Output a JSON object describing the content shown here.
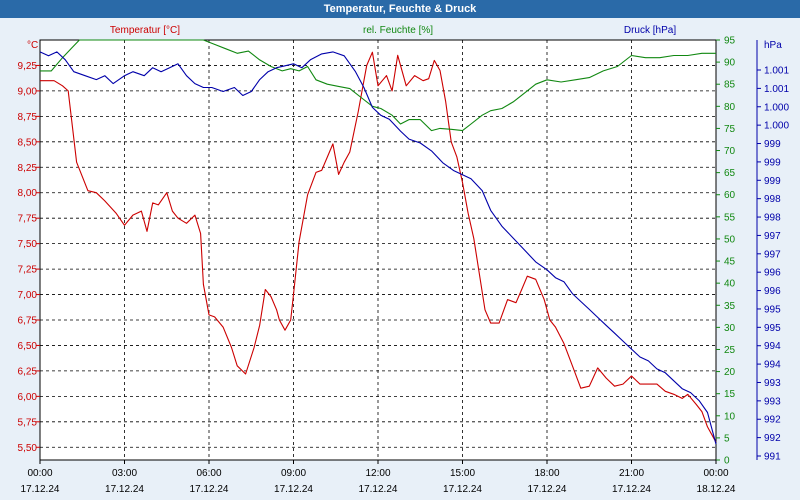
{
  "chart_data": {
    "type": "line",
    "title": "Temperatur, Feuchte & Druck",
    "x_labels": [
      {
        "time": "00:00",
        "date": "17.12.24"
      },
      {
        "time": "03:00",
        "date": "17.12.24"
      },
      {
        "time": "06:00",
        "date": "17.12.24"
      },
      {
        "time": "09:00",
        "date": "17.12.24"
      },
      {
        "time": "12:00",
        "date": "17.12.24"
      },
      {
        "time": "15:00",
        "date": "17.12.24"
      },
      {
        "time": "18:00",
        "date": "17.12.24"
      },
      {
        "time": "21:00",
        "date": "17.12.24"
      },
      {
        "time": "00:00",
        "date": "18.12.24"
      }
    ],
    "xlim_hours": [
      0,
      24
    ],
    "axes": {
      "temperature": {
        "label": "Temperatur [°C]",
        "unit": "°C",
        "ylim": [
          5.375,
          9.5
        ],
        "ticks": [
          "9,25",
          "9,00",
          "8,75",
          "8,50",
          "8,25",
          "8,00",
          "7,75",
          "7,50",
          "7,25",
          "7,00",
          "6,75",
          "6,50",
          "6,25",
          "6,00",
          "5,75",
          "5,50"
        ],
        "color": "#cc0000"
      },
      "humidity": {
        "label": "rel. Feuchte [%]",
        "unit": "%",
        "ylim": [
          0,
          95
        ],
        "ticks": [
          "95",
          "90",
          "85",
          "80",
          "75",
          "70",
          "65",
          "60",
          "55",
          "50",
          "45",
          "40",
          "35",
          "30",
          "25",
          "20",
          "15",
          "10",
          "5",
          "0"
        ],
        "color": "#118811"
      },
      "pressure": {
        "label": "Druck [hPa]",
        "unit": "hPa",
        "ylim": [
          991,
          1001.6
        ],
        "ticks": [
          "1.001",
          "1.001",
          "1.000",
          "1.000",
          "999",
          "999",
          "999",
          "998",
          "998",
          "997",
          "997",
          "996",
          "996",
          "995",
          "995",
          "994",
          "994",
          "993",
          "993",
          "992",
          "992",
          "991"
        ],
        "color": "#0000aa"
      }
    },
    "series": [
      {
        "name": "Temperatur",
        "axis": "temperature",
        "color": "#cc0000",
        "x": [
          0,
          0.5,
          0.8,
          1.0,
          1.3,
          1.7,
          2.0,
          2.3,
          2.7,
          3.0,
          3.3,
          3.6,
          3.8,
          4.0,
          4.2,
          4.5,
          4.7,
          4.9,
          5.2,
          5.5,
          5.7,
          5.8,
          6.0,
          6.2,
          6.5,
          6.8,
          7.0,
          7.3,
          7.6,
          7.8,
          8.0,
          8.2,
          8.4,
          8.5,
          8.7,
          8.9,
          9.0,
          9.2,
          9.5,
          9.8,
          10.0,
          10.2,
          10.4,
          10.6,
          10.8,
          11.0,
          11.3,
          11.6,
          11.8,
          12.0,
          12.3,
          12.5,
          12.7,
          13.0,
          13.3,
          13.6,
          13.8,
          14.0,
          14.2,
          14.4,
          14.6,
          14.8,
          15.0,
          15.2,
          15.4,
          15.6,
          15.8,
          16.0,
          16.3,
          16.6,
          16.9,
          17.1,
          17.3,
          17.6,
          17.9,
          18.1,
          18.3,
          18.6,
          18.9,
          19.2,
          19.5,
          19.8,
          20.1,
          20.4,
          20.7,
          21.0,
          21.3,
          21.6,
          21.9,
          22.2,
          22.5,
          22.8,
          23.0,
          23.3,
          23.5,
          23.7,
          24.0
        ],
        "values": [
          9.1,
          9.1,
          9.05,
          9.0,
          8.3,
          8.02,
          8.0,
          7.92,
          7.8,
          7.68,
          7.78,
          7.82,
          7.62,
          7.9,
          7.88,
          8.0,
          7.82,
          7.75,
          7.7,
          7.78,
          7.6,
          7.1,
          6.8,
          6.78,
          6.68,
          6.48,
          6.3,
          6.22,
          6.48,
          6.7,
          7.05,
          6.98,
          6.85,
          6.75,
          6.65,
          6.75,
          7.0,
          7.52,
          7.98,
          8.2,
          8.22,
          8.35,
          8.48,
          8.18,
          8.3,
          8.4,
          8.8,
          9.25,
          9.38,
          9.05,
          9.15,
          9.0,
          9.35,
          9.05,
          9.15,
          9.1,
          9.12,
          9.3,
          9.2,
          8.9,
          8.5,
          8.35,
          8.1,
          7.8,
          7.55,
          7.2,
          6.85,
          6.72,
          6.72,
          6.95,
          6.92,
          7.05,
          7.18,
          7.15,
          6.95,
          6.75,
          6.68,
          6.52,
          6.3,
          6.08,
          6.1,
          6.28,
          6.18,
          6.1,
          6.12,
          6.2,
          6.12,
          6.12,
          6.12,
          6.05,
          6.02,
          5.98,
          6.02,
          5.92,
          5.85,
          5.7,
          5.55
        ]
      },
      {
        "name": "rel. Feuchte",
        "axis": "humidity",
        "color": "#118811",
        "x": [
          0,
          0.4,
          0.8,
          1.1,
          1.4,
          1.8,
          2.2,
          2.7,
          3.2,
          3.8,
          4.2,
          4.6,
          5.0,
          5.4,
          5.8,
          6.2,
          6.6,
          7.0,
          7.4,
          7.8,
          8.2,
          8.6,
          8.9,
          9.2,
          9.5,
          9.8,
          10.2,
          10.6,
          11.0,
          11.4,
          11.8,
          12.1,
          12.5,
          12.8,
          13.1,
          13.5,
          13.9,
          14.2,
          14.6,
          15.0,
          15.3,
          15.7,
          16.0,
          16.4,
          16.8,
          17.2,
          17.6,
          18.0,
          18.5,
          19.0,
          19.5,
          20.0,
          20.5,
          21.0,
          21.5,
          22.0,
          22.5,
          23.0,
          23.5,
          24.0
        ],
        "values": [
          88,
          88,
          91,
          93,
          95,
          96,
          96.5,
          97,
          97,
          97,
          97.5,
          98,
          98,
          96,
          95,
          94,
          93,
          92,
          92.5,
          90.5,
          89,
          88,
          88.5,
          88,
          89,
          86,
          85,
          84.5,
          84,
          82,
          80,
          79.5,
          78,
          76,
          77,
          77,
          74.5,
          75,
          74.8,
          74.5,
          76,
          78,
          79,
          79.5,
          81,
          83,
          85,
          86,
          85.5,
          86,
          86.5,
          88,
          89,
          91.5,
          91,
          91,
          91.5,
          91.5,
          92,
          92
        ]
      },
      {
        "name": "Druck",
        "axis": "pressure",
        "color": "#0000aa",
        "x": [
          0,
          0.3,
          0.6,
          0.9,
          1.2,
          1.6,
          2.0,
          2.3,
          2.6,
          3.0,
          3.3,
          3.7,
          4.0,
          4.3,
          4.6,
          4.9,
          5.2,
          5.5,
          5.8,
          6.1,
          6.5,
          6.9,
          7.2,
          7.5,
          7.8,
          8.1,
          8.4,
          8.7,
          9.0,
          9.3,
          9.6,
          10.0,
          10.4,
          10.8,
          11.2,
          11.5,
          11.8,
          12.1,
          12.4,
          12.8,
          13.1,
          13.5,
          13.9,
          14.3,
          14.7,
          15.0,
          15.3,
          15.7,
          16.0,
          16.4,
          16.8,
          17.2,
          17.6,
          18.0,
          18.3,
          18.6,
          18.9,
          19.2,
          19.5,
          19.8,
          20.1,
          20.4,
          20.7,
          21.0,
          21.3,
          21.6,
          21.9,
          22.2,
          22.5,
          22.8,
          23.1,
          23.4,
          23.7,
          24.0
        ],
        "values": [
          1001.3,
          1001.2,
          1001.3,
          1001.1,
          1000.8,
          1000.7,
          1000.6,
          1000.7,
          1000.5,
          1000.7,
          1000.8,
          1000.7,
          1000.9,
          1000.8,
          1000.9,
          1001.0,
          1000.7,
          1000.5,
          1000.4,
          1000.4,
          1000.3,
          1000.4,
          1000.2,
          1000.3,
          1000.6,
          1000.8,
          1000.9,
          1000.95,
          1001.0,
          1000.9,
          1001.1,
          1001.25,
          1001.3,
          1001.2,
          1000.8,
          1000.4,
          999.9,
          999.7,
          999.6,
          999.3,
          999.1,
          999.0,
          998.8,
          998.5,
          998.3,
          998.2,
          998.1,
          997.8,
          997.3,
          996.9,
          996.6,
          996.3,
          996.0,
          995.8,
          995.6,
          995.5,
          995.2,
          995.0,
          994.8,
          994.6,
          994.4,
          994.2,
          994.0,
          993.8,
          993.6,
          993.5,
          993.3,
          993.2,
          993.0,
          992.8,
          992.7,
          992.5,
          992.2,
          991.4
        ]
      }
    ]
  }
}
